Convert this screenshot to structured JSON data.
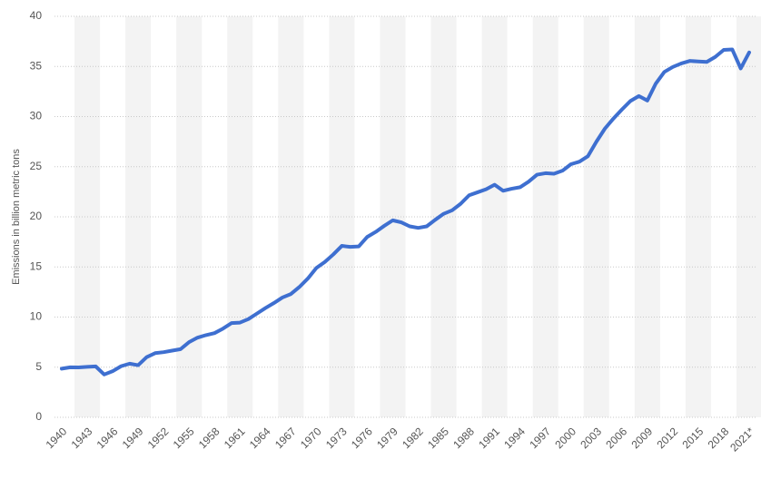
{
  "chart_data": {
    "type": "line",
    "y_label": "Emissions in billion metric tons",
    "categories": [
      "1940",
      null,
      null,
      "1943",
      null,
      null,
      "1946",
      null,
      null,
      "1949",
      null,
      null,
      "1952",
      null,
      null,
      "1955",
      null,
      null,
      "1958",
      null,
      null,
      "1961",
      null,
      null,
      "1964",
      null,
      null,
      "1967",
      null,
      null,
      "1970",
      null,
      null,
      "1973",
      null,
      null,
      "1976",
      null,
      null,
      "1979",
      null,
      null,
      "1982",
      null,
      null,
      "1985",
      null,
      null,
      "1988",
      null,
      null,
      "1991",
      null,
      null,
      "1994",
      null,
      null,
      "1997",
      null,
      null,
      "2000",
      null,
      null,
      "2003",
      null,
      null,
      "2006",
      null,
      null,
      "2009",
      null,
      null,
      "2012",
      null,
      null,
      "2015",
      null,
      null,
      "2018",
      null,
      null,
      "2021*"
    ],
    "values": [
      4.85,
      4.99,
      4.98,
      5.03,
      5.08,
      4.27,
      4.6,
      5.1,
      5.35,
      5.2,
      6.0,
      6.4,
      6.5,
      6.65,
      6.8,
      7.5,
      7.95,
      8.2,
      8.4,
      8.85,
      9.4,
      9.45,
      9.8,
      10.35,
      10.9,
      11.4,
      11.95,
      12.3,
      13.0,
      13.85,
      14.9,
      15.5,
      16.25,
      17.1,
      17.0,
      17.05,
      18.0,
      18.5,
      19.1,
      19.65,
      19.45,
      19.05,
      18.9,
      19.05,
      19.7,
      20.3,
      20.65,
      21.3,
      22.15,
      22.45,
      22.75,
      23.2,
      22.6,
      22.8,
      22.95,
      23.5,
      24.2,
      24.35,
      24.3,
      24.6,
      25.25,
      25.5,
      26.05,
      27.5,
      28.8,
      29.8,
      30.7,
      31.55,
      32.05,
      31.6,
      33.3,
      34.45,
      34.95,
      35.3,
      35.55,
      35.5,
      35.45,
      35.95,
      36.65,
      36.7,
      34.8,
      36.4
    ],
    "color": "#3e6fd0",
    "ylim": [
      0,
      40
    ],
    "yticks": [
      0,
      5,
      10,
      15,
      20,
      25,
      30,
      35,
      40
    ],
    "grid": true
  }
}
